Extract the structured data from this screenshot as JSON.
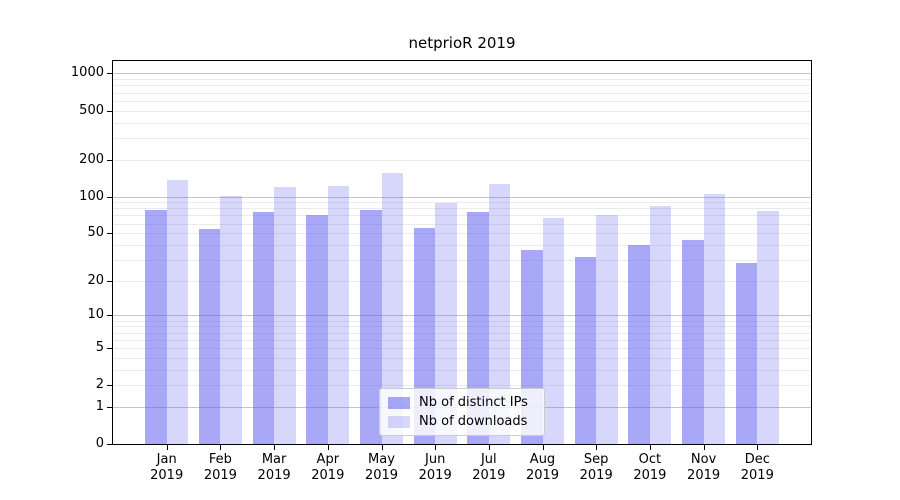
{
  "title": "netprioR 2019",
  "chart_data": {
    "type": "bar",
    "title": "netprioR 2019",
    "categories": [
      "Jan 2019",
      "Feb 2019",
      "Mar 2019",
      "Apr 2019",
      "May 2019",
      "Jun 2019",
      "Jul 2019",
      "Aug 2019",
      "Sep 2019",
      "Oct 2019",
      "Nov 2019",
      "Dec 2019"
    ],
    "x_tick_months": [
      "Jan",
      "Feb",
      "Mar",
      "Apr",
      "May",
      "Jun",
      "Jul",
      "Aug",
      "Sep",
      "Oct",
      "Nov",
      "Dec"
    ],
    "x_tick_year": "2019",
    "series": [
      {
        "name": "Nb of distinct IPs",
        "key": "distinct-ips",
        "color": "rgba(102,102,240,0.57)",
        "values": [
          78,
          54,
          74,
          71,
          77,
          55,
          75,
          36,
          32,
          40,
          44,
          28
        ]
      },
      {
        "name": "Nb of downloads",
        "key": "downloads",
        "color": "rgba(102,102,240,0.26)",
        "values": [
          136,
          101,
          119,
          122,
          155,
          89,
          127,
          67,
          70,
          84,
          104,
          76
        ]
      }
    ],
    "xlabel": "",
    "ylabel": "",
    "yscale": "log1p",
    "ylim": [
      0,
      1260
    ],
    "y_tick_values": [
      0,
      1,
      2,
      5,
      10,
      20,
      50,
      100,
      200,
      500,
      1000
    ],
    "y_major_grid": [
      1,
      10,
      100,
      1000
    ],
    "y_minor_grid": [
      2,
      3,
      4,
      5,
      6,
      7,
      8,
      9,
      20,
      30,
      40,
      50,
      60,
      70,
      80,
      90,
      200,
      300,
      400,
      500,
      600,
      700,
      800,
      900
    ],
    "grid": true,
    "legend_position": "lower center"
  },
  "colors": {
    "bar_distinct_ips_rendered": "#a8a8f6",
    "bar_downloads_rendered": "#d8d8f9",
    "major_gridline": "#c6c6c6",
    "minor_gridline": "#ebebeb",
    "spine": "#000000",
    "legend_border": "#cccccc",
    "legend_background": "rgba(255,255,255,0.8)",
    "text": "#000000"
  }
}
